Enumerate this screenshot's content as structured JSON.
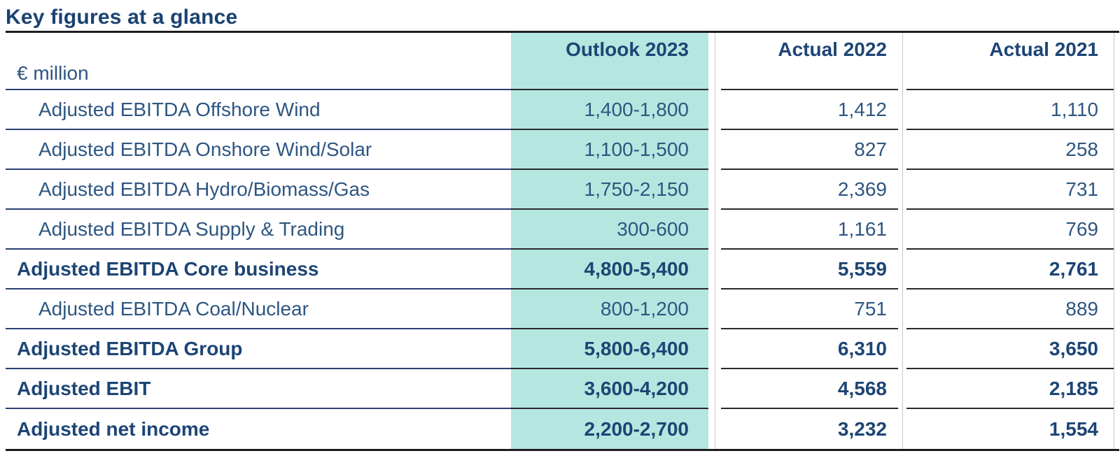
{
  "title": "Key figures at a glance",
  "table": {
    "unit_label": "€ million",
    "columns": [
      "Outlook 2023",
      "Actual 2022",
      "Actual 2021"
    ],
    "highlighted_column": "Outlook 2023",
    "rows": [
      {
        "label": "Adjusted EBITDA Offshore Wind",
        "indent": true,
        "bold": false,
        "values": [
          "1,400-1,800",
          "1,412",
          "1,110"
        ]
      },
      {
        "label": "Adjusted EBITDA Onshore Wind/Solar",
        "indent": true,
        "bold": false,
        "values": [
          "1,100-1,500",
          "827",
          "258"
        ]
      },
      {
        "label": "Adjusted EBITDA Hydro/Biomass/Gas",
        "indent": true,
        "bold": false,
        "values": [
          "1,750-2,150",
          "2,369",
          "731"
        ]
      },
      {
        "label": "Adjusted EBITDA Supply & Trading",
        "indent": true,
        "bold": false,
        "values": [
          "300-600",
          "1,161",
          "769"
        ]
      },
      {
        "label": "Adjusted EBITDA Core business",
        "indent": false,
        "bold": true,
        "values": [
          "4,800-5,400",
          "5,559",
          "2,761"
        ]
      },
      {
        "label": "Adjusted EBITDA Coal/Nuclear",
        "indent": true,
        "bold": false,
        "values": [
          "800-1,200",
          "751",
          "889"
        ]
      },
      {
        "label": "Adjusted EBITDA Group",
        "indent": false,
        "bold": true,
        "values": [
          "5,800-6,400",
          "6,310",
          "3,650"
        ]
      },
      {
        "label": "Adjusted EBIT",
        "indent": false,
        "bold": true,
        "values": [
          "3,600-4,200",
          "4,568",
          "2,185"
        ]
      },
      {
        "label": "Adjusted net income",
        "indent": false,
        "bold": true,
        "values": [
          "2,200-2,700",
          "3,232",
          "1,554"
        ]
      }
    ]
  },
  "colors": {
    "highlight": "#b4e7df",
    "navy_title": "#1a4272",
    "navy_bold": "#1d4575",
    "navy_text": "#2e5681",
    "line_navy": "#2d3f74",
    "line_dark": "#29292e",
    "rule_dark": "#1c1c20",
    "divider_gray": "#c9c9c9"
  }
}
